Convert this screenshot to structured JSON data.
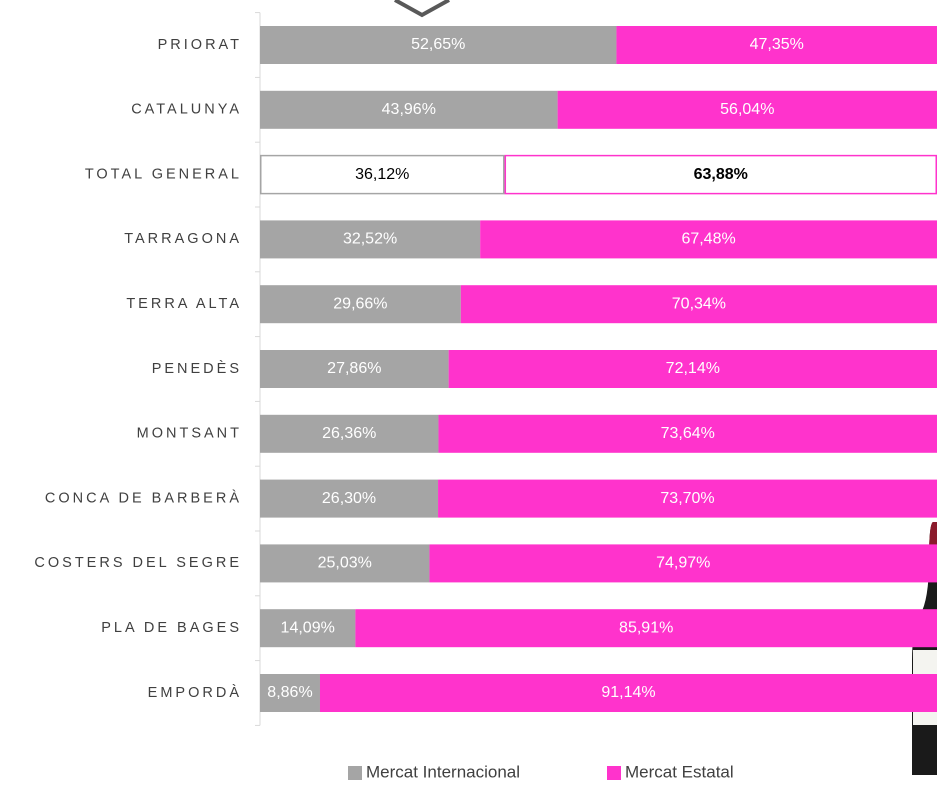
{
  "chart_data": {
    "type": "stacked_bar_horizontal_100",
    "categories": [
      "PRIORAT",
      "CATALUNYA",
      "TOTAL GENERAL",
      "TARRAGONA",
      "TERRA ALTA",
      "PENEDÈS",
      "MONTSANT",
      "CONCA DE BARBERÀ",
      "COSTERS DEL SEGRE",
      "PLA DE BAGES",
      "EMPORDÀ"
    ],
    "series": [
      {
        "name": "Mercat Internacional",
        "color": "#a5a5a5",
        "values": [
          52.65,
          43.96,
          36.12,
          32.52,
          29.66,
          27.86,
          26.36,
          26.3,
          25.03,
          14.09,
          8.86
        ],
        "value_labels": [
          "52,65%",
          "43,96%",
          "36,12%",
          "32,52%",
          "29,66%",
          "27,86%",
          "26,36%",
          "26,30%",
          "25,03%",
          "14,09%",
          "8,86%"
        ]
      },
      {
        "name": "Mercat Estatal",
        "color": "#ff33cc",
        "values": [
          47.35,
          56.04,
          63.88,
          67.48,
          70.34,
          72.14,
          73.64,
          73.7,
          74.97,
          85.91,
          91.14
        ],
        "value_labels": [
          "47,35%",
          "56,04%",
          "63,88%",
          "67,48%",
          "70,34%",
          "72,14%",
          "73,64%",
          "73,70%",
          "74,97%",
          "85,91%",
          "91,14%"
        ]
      }
    ],
    "xlim": [
      0,
      100
    ],
    "legend": "bottom"
  }
}
